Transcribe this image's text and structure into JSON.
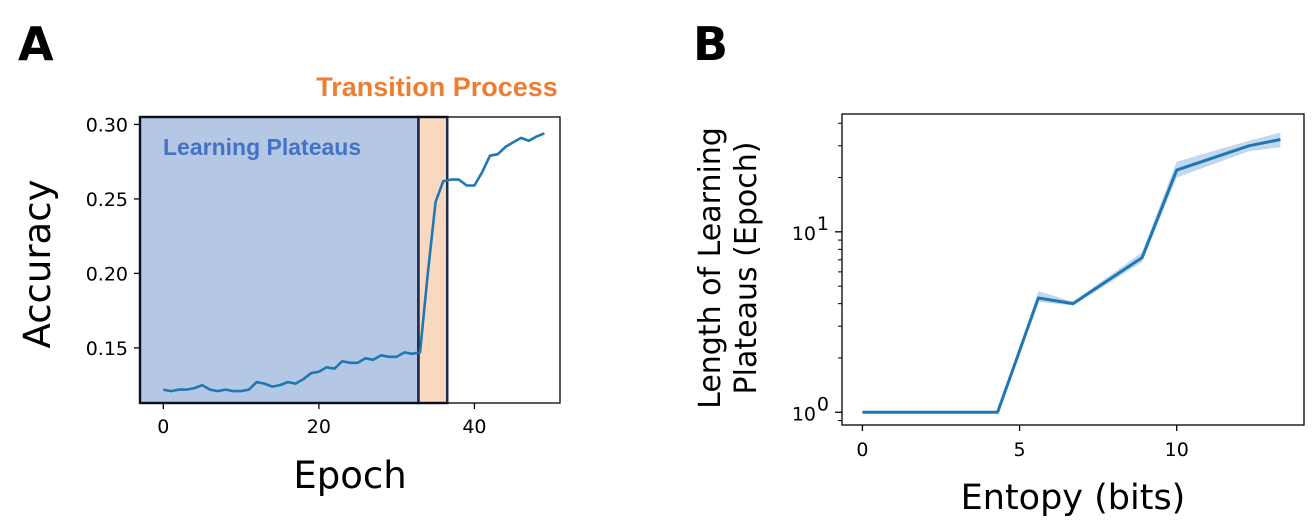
{
  "panels": {
    "a_letter": "A",
    "b_letter": "B"
  },
  "colors": {
    "line": "#1f77b4",
    "plateau_fill": "#aabfe0",
    "plateau_edge": "#1d2b4a",
    "transition_fill": "#f7c8a4",
    "transition_text": "#ed7d31",
    "plateau_text": "#4472c4",
    "band": "#aecbe8"
  },
  "chart_data": [
    {
      "id": "A",
      "type": "line",
      "title": "",
      "xlabel": "Epoch",
      "ylabel": "Accuracy",
      "xlim": [
        -3,
        51
      ],
      "ylim": [
        0.113,
        0.305
      ],
      "xticks": [
        0,
        20,
        40
      ],
      "xtick_labels": [
        "0",
        "20",
        "40"
      ],
      "yticks": [
        0.15,
        0.2,
        0.25,
        0.3
      ],
      "ytick_labels": [
        "0.15",
        "0.20",
        "0.25",
        "0.30"
      ],
      "annotations": {
        "plateau_label": "Learning Plateaus",
        "transition_label": "Transition Process",
        "plateau_range": [
          -3,
          32.8
        ],
        "transition_range": [
          32.8,
          36.5
        ]
      },
      "series": [
        {
          "name": "accuracy",
          "x": [
            0,
            1,
            2,
            3,
            4,
            5,
            6,
            7,
            8,
            9,
            10,
            11,
            12,
            13,
            14,
            15,
            16,
            17,
            18,
            19,
            20,
            21,
            22,
            23,
            24,
            25,
            26,
            27,
            28,
            29,
            30,
            31,
            32,
            33,
            34,
            35,
            36,
            37,
            38,
            39,
            40,
            41,
            42,
            43,
            44,
            45,
            46,
            47,
            48,
            49
          ],
          "values": [
            0.122,
            0.121,
            0.122,
            0.122,
            0.123,
            0.125,
            0.122,
            0.121,
            0.122,
            0.121,
            0.121,
            0.122,
            0.127,
            0.126,
            0.124,
            0.125,
            0.127,
            0.126,
            0.129,
            0.133,
            0.134,
            0.137,
            0.136,
            0.141,
            0.14,
            0.14,
            0.143,
            0.142,
            0.145,
            0.144,
            0.144,
            0.147,
            0.146,
            0.147,
            0.2,
            0.248,
            0.262,
            0.263,
            0.263,
            0.259,
            0.259,
            0.268,
            0.279,
            0.28,
            0.285,
            0.288,
            0.291,
            0.289,
            0.292,
            0.294
          ]
        }
      ]
    },
    {
      "id": "B",
      "type": "line",
      "title": "",
      "xlabel": "Entopy (bits)",
      "ylabel": "Length of Learning\nPlateaus (Epoch)",
      "ylabel_lines": [
        "Length of Learning",
        "Plateaus (Epoch)"
      ],
      "yscale": "log",
      "xlim": [
        -0.65,
        14.05
      ],
      "ylim": [
        0.85,
        45
      ],
      "xticks": [
        0,
        5,
        10
      ],
      "xtick_labels": [
        "0",
        "5",
        "10"
      ],
      "yticks": [
        1,
        10
      ],
      "ytick_base": "10",
      "ytick_exponents": [
        "0",
        "1"
      ],
      "series": [
        {
          "name": "plateau length",
          "x": [
            0,
            4.3,
            5.6,
            6.7,
            8.9,
            10.0,
            12.3,
            13.3
          ],
          "values": [
            1.0,
            1.0,
            4.3,
            4.0,
            7.2,
            22.0,
            30.0,
            32.5
          ],
          "band_low": [
            1.0,
            1.0,
            4.1,
            3.9,
            6.8,
            20.0,
            28.0,
            29.5
          ],
          "band_high": [
            1.0,
            1.0,
            4.7,
            4.1,
            7.7,
            24.5,
            32.0,
            35.5
          ]
        }
      ]
    }
  ]
}
